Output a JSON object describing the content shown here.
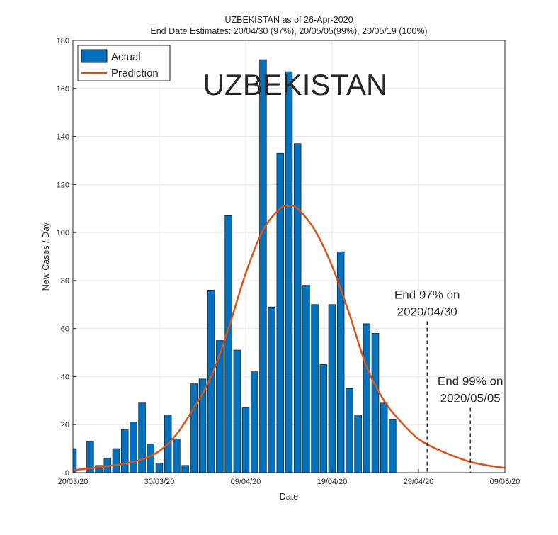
{
  "chart_data": {
    "type": "bar",
    "title": "UZBEKISTAN as of 26-Apr-2020",
    "subtitle": "End Date Estimates: 20/04/30 (97%), 20/05/05(99%), 20/05/19 (100%)",
    "watermark_label": "UZBEKISTAN",
    "xlabel": "Date",
    "ylabel": "New Cases / Day",
    "xlim": [
      "20/03/20",
      "09/05/20"
    ],
    "ylim": [
      0,
      180
    ],
    "x_ticks": [
      "20/03/20",
      "30/03/20",
      "09/04/20",
      "19/04/20",
      "29/04/20",
      "09/05/20"
    ],
    "y_ticks": [
      "0",
      "20",
      "40",
      "60",
      "80",
      "100",
      "120",
      "140",
      "160",
      "180"
    ],
    "grid": true,
    "legend_position": "top-left",
    "series": [
      {
        "name": "Actual",
        "type": "bar",
        "color": "#0072BD",
        "start_date": "20/03/20",
        "values": [
          10,
          0,
          13,
          3,
          6,
          10,
          18,
          21,
          29,
          12,
          4,
          24,
          14,
          3,
          37,
          39,
          76,
          55,
          107,
          51,
          27,
          42,
          172,
          69,
          133,
          167,
          137,
          78,
          70,
          45,
          70,
          92,
          35,
          24,
          62,
          58,
          29,
          22
        ]
      },
      {
        "name": "Prediction",
        "type": "line",
        "color": "#D95319",
        "points": [
          [
            "20/03/20",
            1
          ],
          [
            "22/03/20",
            1.8
          ],
          [
            "24/03/20",
            2.7
          ],
          [
            "26/03/20",
            3.8
          ],
          [
            "28/03/20",
            5.5
          ],
          [
            "30/03/20",
            9
          ],
          [
            "01/04/20",
            16
          ],
          [
            "03/04/20",
            27
          ],
          [
            "05/04/20",
            40
          ],
          [
            "07/04/20",
            60
          ],
          [
            "09/04/20",
            83
          ],
          [
            "11/04/20",
            101
          ],
          [
            "13/04/20",
            110
          ],
          [
            "14/04/20",
            111
          ],
          [
            "15/04/20",
            110
          ],
          [
            "17/04/20",
            101
          ],
          [
            "19/04/20",
            86
          ],
          [
            "21/04/20",
            66
          ],
          [
            "23/04/20",
            44
          ],
          [
            "25/04/20",
            30
          ],
          [
            "27/04/20",
            21
          ],
          [
            "29/04/20",
            14
          ],
          [
            "01/05/20",
            10
          ],
          [
            "03/05/20",
            7
          ],
          [
            "05/05/20",
            4.5
          ],
          [
            "07/05/20",
            3
          ],
          [
            "09/05/20",
            2
          ]
        ]
      }
    ],
    "annotations": [
      {
        "line1": "End 97% on",
        "line2": "2020/04/30",
        "date": "30/04/20",
        "top_value": 63
      },
      {
        "line1": "End 99% on",
        "line2": "2020/05/05",
        "date": "05/05/20",
        "top_value": 27
      }
    ]
  }
}
